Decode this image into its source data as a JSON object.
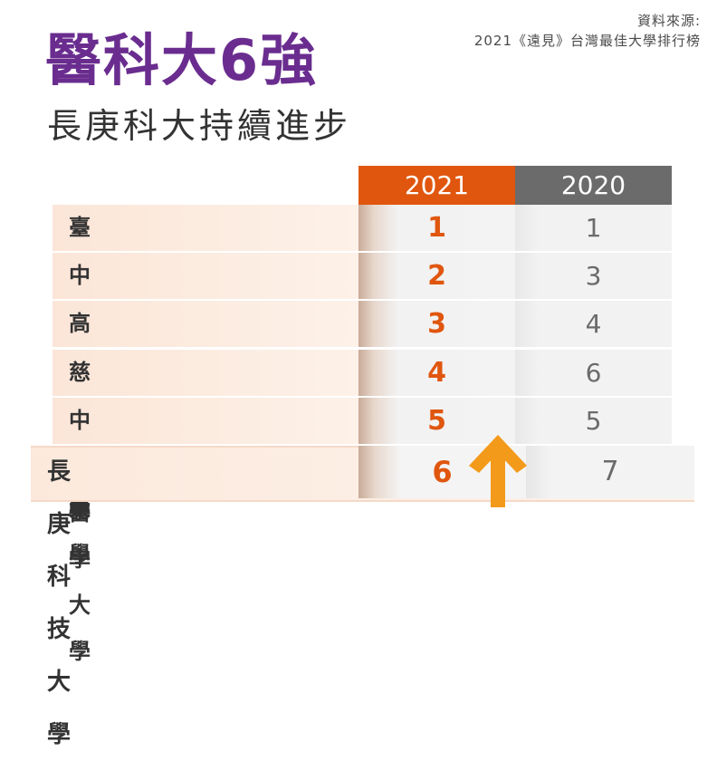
{
  "source": {
    "line1": "資料來源:",
    "line2": "2021《遠見》台灣最佳大學排行榜"
  },
  "title": "醫科大6強",
  "subtitle": "長庚科大持續進步",
  "table": {
    "headers": [
      "2021",
      "2020"
    ],
    "rows": [
      {
        "name": "臺北醫學大學",
        "rank_2021": "1",
        "rank_2020": "1"
      },
      {
        "name": "中國醫藥大學",
        "rank_2021": "2",
        "rank_2020": "3"
      },
      {
        "name": "高雄醫學大學",
        "rank_2021": "3",
        "rank_2020": "4"
      },
      {
        "name": "慈濟大學",
        "rank_2021": "4",
        "rank_2020": "6"
      },
      {
        "name": "中山醫學大學",
        "rank_2021": "5",
        "rank_2020": "5"
      },
      {
        "name": "長庚科技大學",
        "rank_2021": "6",
        "rank_2020": "7"
      }
    ]
  },
  "colors": {
    "title": "#6a2d8f",
    "header_2021": "#e0560e",
    "header_2020": "#6b6b6b",
    "rank_2021": "#e0560e",
    "arrow": "#f39a1a"
  },
  "icons": {
    "arrow": "up-arrow-icon"
  }
}
